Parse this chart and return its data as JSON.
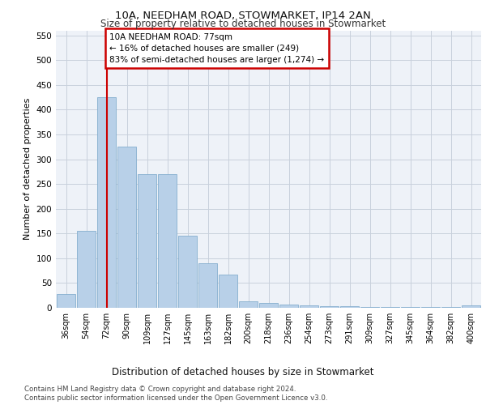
{
  "title1": "10A, NEEDHAM ROAD, STOWMARKET, IP14 2AN",
  "title2": "Size of property relative to detached houses in Stowmarket",
  "xlabel": "Distribution of detached houses by size in Stowmarket",
  "ylabel": "Number of detached properties",
  "categories": [
    "36sqm",
    "54sqm",
    "72sqm",
    "90sqm",
    "109sqm",
    "127sqm",
    "145sqm",
    "163sqm",
    "182sqm",
    "200sqm",
    "218sqm",
    "236sqm",
    "254sqm",
    "273sqm",
    "291sqm",
    "309sqm",
    "327sqm",
    "345sqm",
    "364sqm",
    "382sqm",
    "400sqm"
  ],
  "values": [
    28,
    155,
    425,
    325,
    270,
    270,
    145,
    90,
    67,
    13,
    10,
    7,
    5,
    4,
    3,
    2,
    2,
    1,
    1,
    1,
    5
  ],
  "bar_color": "#b8d0e8",
  "bar_edge_color": "#85aece",
  "vline_x_index": 2,
  "vline_color": "#cc0000",
  "annotation_text": "10A NEEDHAM ROAD: 77sqm\n← 16% of detached houses are smaller (249)\n83% of semi-detached houses are larger (1,274) →",
  "annotation_box_color": "#ffffff",
  "annotation_box_edge_color": "#cc0000",
  "ylim": [
    0,
    560
  ],
  "yticks": [
    0,
    50,
    100,
    150,
    200,
    250,
    300,
    350,
    400,
    450,
    500,
    550
  ],
  "footnote1": "Contains HM Land Registry data © Crown copyright and database right 2024.",
  "footnote2": "Contains public sector information licensed under the Open Government Licence v3.0.",
  "bg_color": "#ffffff",
  "plot_bg_color": "#eef2f8",
  "grid_color": "#c8d0dc"
}
